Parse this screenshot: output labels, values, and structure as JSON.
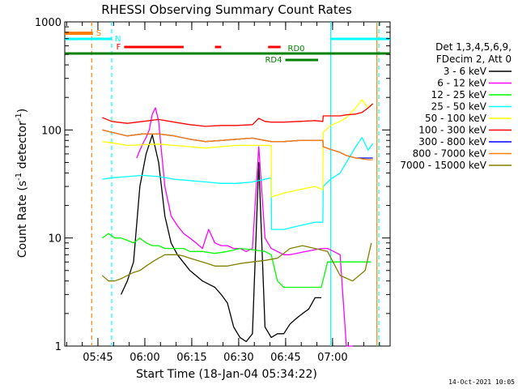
{
  "chart_data": {
    "type": "line",
    "title": "RHESSI Observing Summary Count Rates",
    "xlabel": "Start Time (18-Jan-04 05:34:22)",
    "ylabel_main": "Count Rate (s",
    "ylabel_sup": "-1",
    "ylabel_tail": " detector",
    "ylabel_end": ")",
    "x_unit": "minutes since 05:34:22",
    "xlim": [
      0,
      104
    ],
    "ylim": [
      1,
      1000
    ],
    "yscale": "log",
    "xticks": [
      {
        "label": "05:45",
        "value": 10.6
      },
      {
        "label": "06:00",
        "value": 25.6
      },
      {
        "label": "06:15",
        "value": 40.6
      },
      {
        "label": "06:30",
        "value": 55.6
      },
      {
        "label": "06:45",
        "value": 70.6
      },
      {
        "label": "07:00",
        "value": 85.6
      }
    ],
    "yticks": [
      {
        "label": "1",
        "value": 1
      },
      {
        "label": "10",
        "value": 10
      },
      {
        "label": "100",
        "value": 100
      },
      {
        "label": "1000",
        "value": 1000
      }
    ],
    "legend_header": [
      "Det 1,3,4,5,6,9,",
      "FDecim 2, Att 0"
    ],
    "legend_position": "right",
    "series": [
      {
        "name": "3 - 6 keV",
        "color": "#000000",
        "x": [
          12,
          14,
          16,
          18,
          20,
          22,
          24,
          26,
          28,
          30,
          32,
          34,
          36,
          40,
          44,
          48,
          50,
          52,
          54,
          56,
          58,
          60,
          62,
          64,
          66,
          68,
          70,
          72,
          74,
          76,
          78,
          80,
          82
        ],
        "y": [
          null,
          null,
          null,
          3,
          4,
          6,
          30,
          60,
          90,
          50,
          16,
          9,
          7,
          5,
          4,
          3.5,
          3,
          2.5,
          1.5,
          1.2,
          1.1,
          1.3,
          50,
          1.5,
          1.2,
          1.3,
          1.3,
          1.6,
          1.8,
          2,
          2.2,
          2.8,
          2.8
        ]
      },
      {
        "name": "6 - 12 keV",
        "color": "#ff00ff",
        "x": [
          23,
          24,
          25,
          26,
          27,
          28,
          29,
          30,
          31,
          32,
          34,
          36,
          38,
          40,
          42,
          44,
          46,
          48,
          50,
          52,
          54,
          56,
          58,
          60,
          62,
          64,
          66,
          68,
          70,
          72,
          74,
          76,
          78,
          80,
          82,
          84,
          86,
          88,
          90,
          92
        ],
        "y": [
          55,
          65,
          75,
          85,
          100,
          140,
          160,
          120,
          60,
          30,
          16,
          13,
          11,
          10,
          9,
          8,
          12,
          9,
          8.5,
          8.5,
          8,
          8,
          7.5,
          8,
          70,
          10,
          8,
          7.5,
          7,
          7,
          7.2,
          7.4,
          7.6,
          7.8,
          8,
          8,
          7.5,
          7,
          1,
          1
        ]
      },
      {
        "name": "12 - 25 keV",
        "color": "#00ff00",
        "x": [
          12,
          14,
          16,
          18,
          20,
          22,
          24,
          26,
          28,
          30,
          32,
          34,
          36,
          38,
          40,
          44,
          48,
          52,
          56,
          60,
          64,
          66,
          68,
          70,
          72,
          74,
          76,
          78,
          80,
          82,
          84,
          86,
          88,
          90,
          92,
          94,
          96,
          98
        ],
        "y": [
          10,
          11,
          10,
          10,
          9.5,
          9,
          10,
          9,
          8.5,
          8.5,
          8,
          8,
          8,
          8,
          7.5,
          7.5,
          7.2,
          7.5,
          8,
          7.8,
          7.5,
          7,
          4,
          3.5,
          3.5,
          3.5,
          3.5,
          3.5,
          3.5,
          3.5,
          6,
          6,
          6,
          6,
          6,
          6,
          6,
          6
        ]
      },
      {
        "name": "25 - 50 keV",
        "color": "#00ffff",
        "x": [
          12,
          15,
          20,
          25,
          30,
          35,
          40,
          45,
          50,
          55,
          60,
          64,
          66,
          66.1,
          70,
          75,
          80,
          82.5,
          82.6,
          85,
          88,
          90,
          93,
          95,
          97,
          98.5
        ],
        "y": [
          35,
          36,
          37,
          38,
          37,
          35,
          34,
          33,
          32,
          32,
          33,
          35,
          36,
          12,
          12,
          13,
          14,
          14,
          30,
          35,
          40,
          50,
          70,
          85,
          65,
          75
        ]
      },
      {
        "name": "50 - 100 keV",
        "color": "#ffff00",
        "x": [
          12,
          15,
          20,
          25,
          30,
          35,
          40,
          45,
          50,
          55,
          60,
          64,
          66,
          66.1,
          70,
          75,
          80,
          82.5,
          82.6,
          85,
          88,
          90,
          93,
          95,
          97,
          98.5
        ],
        "y": [
          78,
          76,
          72,
          73,
          74,
          72,
          70,
          68,
          70,
          72,
          72,
          72,
          72,
          24,
          26,
          28,
          30,
          28,
          95,
          110,
          120,
          130,
          160,
          190,
          160,
          175
        ]
      },
      {
        "name": "100 - 300 keV",
        "color": "#ff0000",
        "x": [
          12,
          15,
          20,
          25,
          30,
          35,
          40,
          45,
          50,
          55,
          60,
          62,
          64,
          66,
          70,
          75,
          80,
          82.5,
          82.6,
          85,
          88,
          90,
          93,
          95,
          97,
          98.5
        ],
        "y": [
          130,
          120,
          115,
          120,
          125,
          118,
          112,
          108,
          110,
          110,
          112,
          128,
          120,
          118,
          118,
          120,
          122,
          120,
          135,
          135,
          135,
          138,
          140,
          145,
          160,
          175
        ]
      },
      {
        "name": "300 - 800 keV",
        "color": "#0000ff",
        "x": [
          12,
          15,
          20,
          25,
          30,
          35,
          40,
          45,
          50,
          55,
          60,
          64,
          66,
          70,
          75,
          80,
          82.5,
          82.6,
          85,
          88,
          90,
          93,
          95,
          97,
          98.5
        ],
        "y": [
          100,
          95,
          88,
          92,
          92,
          88,
          82,
          78,
          80,
          82,
          84,
          80,
          78,
          78,
          80,
          80,
          80,
          70,
          66,
          62,
          58,
          55,
          55,
          55,
          55
        ]
      },
      {
        "name": "800 - 7000 keV",
        "color": "#ff8000",
        "x": [
          12,
          15,
          20,
          25,
          30,
          35,
          40,
          45,
          50,
          55,
          60,
          64,
          66,
          70,
          75,
          80,
          82.5,
          82.6,
          85,
          88,
          90,
          93,
          95,
          97,
          98.5
        ],
        "y": [
          100,
          95,
          88,
          92,
          92,
          88,
          82,
          78,
          80,
          82,
          84,
          80,
          78,
          78,
          80,
          80,
          80,
          70,
          66,
          62,
          58,
          55,
          54,
          53,
          53
        ]
      },
      {
        "name": "7000 - 15000 keV",
        "color": "#808000",
        "x": [
          12,
          14,
          16,
          18,
          20,
          22,
          24,
          26,
          28,
          30,
          32,
          34,
          36,
          38,
          40,
          44,
          48,
          52,
          56,
          60,
          64,
          68,
          72,
          76,
          80,
          84,
          88,
          92,
          96,
          98
        ],
        "y": [
          4.5,
          4,
          4,
          4.2,
          4.5,
          4.8,
          5,
          5.5,
          6,
          6.5,
          7,
          7,
          7,
          6.8,
          6.5,
          6,
          5.5,
          5.5,
          5.8,
          6,
          6.2,
          6.5,
          8,
          8.5,
          8,
          7.5,
          4.5,
          4,
          5,
          9
        ]
      }
    ],
    "markers": {
      "S": {
        "label": "S",
        "color": "#ff8000",
        "x": [
          0,
          9
        ]
      },
      "N": {
        "label": "N",
        "color": "#00ffff",
        "x": [
          0,
          15
        ]
      },
      "F": {
        "label": "F",
        "color": "#ff0000",
        "segments": [
          [
            19,
            38
          ],
          [
            48,
            50
          ],
          [
            65,
            69
          ]
        ]
      },
      "RD0": {
        "label": "RD0",
        "color": "#008000",
        "x": [
          0,
          104
        ]
      },
      "RD4": {
        "label": "RD4",
        "color": "#008000",
        "x": [
          70.5,
          81
        ]
      }
    },
    "vlines": [
      {
        "x": 8.6,
        "color": "#ff8000",
        "style": "dashed"
      },
      {
        "x": 15,
        "color": "#00ffff",
        "style": "dashed"
      },
      {
        "x": 85,
        "color": "#00ffff",
        "style": "solid"
      },
      {
        "x": 99.8,
        "color": "#ff8000",
        "style": "solid"
      },
      {
        "x": 100.4,
        "color": "#00ffff",
        "style": "dashed"
      }
    ],
    "footer": "14-Oct-2021 10:05"
  }
}
